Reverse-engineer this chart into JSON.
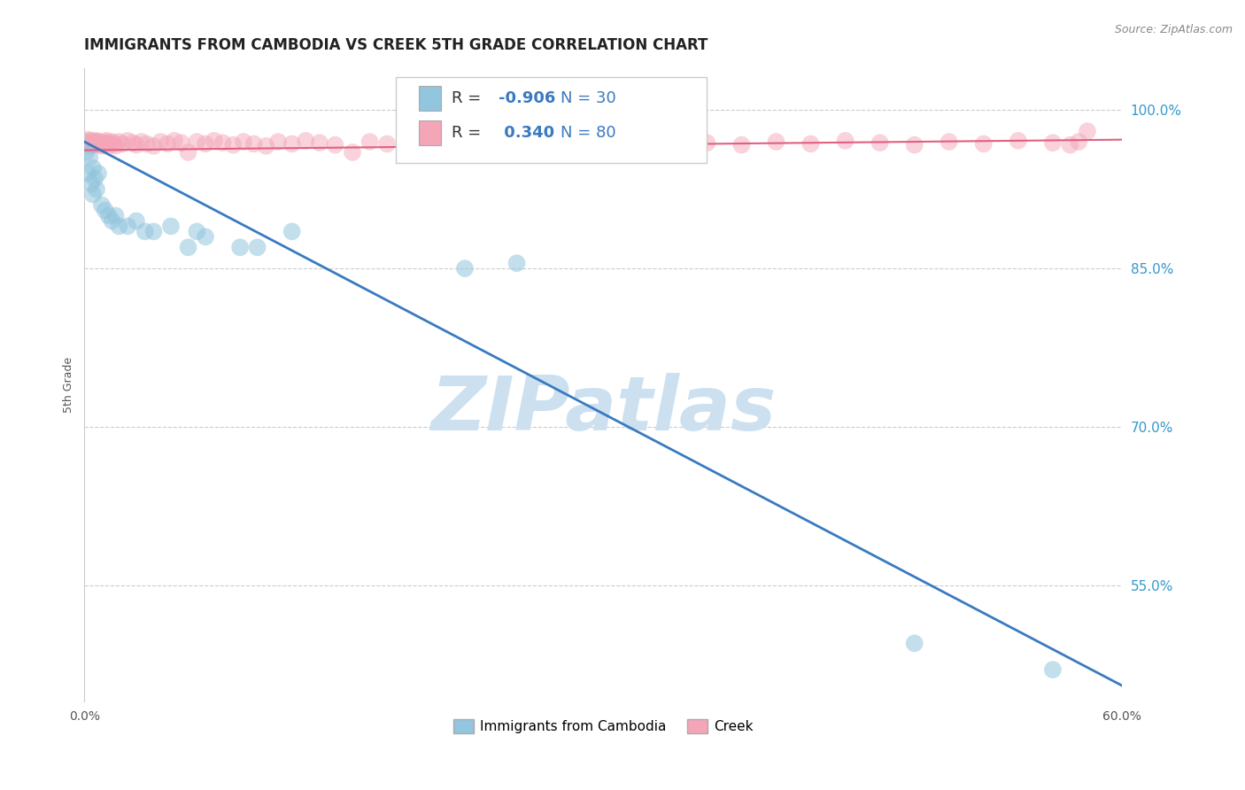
{
  "title": "IMMIGRANTS FROM CAMBODIA VS CREEK 5TH GRADE CORRELATION CHART",
  "source_text": "Source: ZipAtlas.com",
  "ylabel": "5th Grade",
  "xlabel": "",
  "xlim": [
    0.0,
    0.6
  ],
  "ylim": [
    0.44,
    1.04
  ],
  "xticks": [
    0.0,
    0.1,
    0.2,
    0.3,
    0.4,
    0.5,
    0.6
  ],
  "xticklabels": [
    "0.0%",
    "",
    "",
    "",
    "",
    "",
    "60.0%"
  ],
  "yticks": [
    0.55,
    0.7,
    0.85,
    1.0
  ],
  "yticklabels": [
    "55.0%",
    "70.0%",
    "85.0%",
    "100.0%"
  ],
  "blue_color": "#92c5de",
  "pink_color": "#f4a6b8",
  "blue_line_color": "#3a7abf",
  "pink_line_color": "#e06080",
  "watermark_color": "#cce0f0",
  "background_color": "#ffffff",
  "R_blue": -0.906,
  "N_blue": 30,
  "R_pink": 0.34,
  "N_pink": 80,
  "blue_scatter_x": [
    0.001,
    0.002,
    0.003,
    0.004,
    0.005,
    0.005,
    0.006,
    0.007,
    0.008,
    0.01,
    0.012,
    0.014,
    0.016,
    0.018,
    0.02,
    0.025,
    0.03,
    0.035,
    0.04,
    0.05,
    0.06,
    0.065,
    0.07,
    0.09,
    0.1,
    0.12,
    0.22,
    0.25,
    0.48,
    0.56
  ],
  "blue_scatter_y": [
    0.96,
    0.94,
    0.955,
    0.93,
    0.945,
    0.92,
    0.935,
    0.925,
    0.94,
    0.91,
    0.905,
    0.9,
    0.895,
    0.9,
    0.89,
    0.89,
    0.895,
    0.885,
    0.885,
    0.89,
    0.87,
    0.885,
    0.88,
    0.87,
    0.87,
    0.885,
    0.85,
    0.855,
    0.495,
    0.47
  ],
  "blue_line_x": [
    0.0,
    0.6
  ],
  "blue_line_y": [
    0.97,
    0.455
  ],
  "pink_scatter_x": [
    0.001,
    0.002,
    0.002,
    0.003,
    0.003,
    0.004,
    0.004,
    0.005,
    0.005,
    0.006,
    0.006,
    0.007,
    0.007,
    0.008,
    0.008,
    0.009,
    0.01,
    0.011,
    0.012,
    0.013,
    0.014,
    0.015,
    0.016,
    0.017,
    0.018,
    0.02,
    0.022,
    0.025,
    0.028,
    0.03,
    0.033,
    0.036,
    0.04,
    0.044,
    0.048,
    0.052,
    0.056,
    0.06,
    0.065,
    0.07,
    0.075,
    0.08,
    0.086,
    0.092,
    0.098,
    0.105,
    0.112,
    0.12,
    0.128,
    0.136,
    0.145,
    0.155,
    0.165,
    0.175,
    0.185,
    0.195,
    0.205,
    0.215,
    0.225,
    0.235,
    0.25,
    0.265,
    0.28,
    0.3,
    0.32,
    0.34,
    0.36,
    0.38,
    0.4,
    0.42,
    0.44,
    0.46,
    0.48,
    0.5,
    0.52,
    0.54,
    0.56,
    0.57,
    0.575,
    0.58
  ],
  "pink_scatter_y": [
    0.97,
    0.968,
    0.972,
    0.966,
    0.97,
    0.968,
    0.971,
    0.969,
    0.967,
    0.97,
    0.968,
    0.971,
    0.969,
    0.967,
    0.97,
    0.968,
    0.966,
    0.97,
    0.968,
    0.971,
    0.969,
    0.967,
    0.97,
    0.968,
    0.966,
    0.97,
    0.968,
    0.971,
    0.969,
    0.967,
    0.97,
    0.968,
    0.966,
    0.97,
    0.968,
    0.971,
    0.969,
    0.96,
    0.97,
    0.968,
    0.971,
    0.969,
    0.967,
    0.97,
    0.968,
    0.966,
    0.97,
    0.968,
    0.971,
    0.969,
    0.967,
    0.96,
    0.97,
    0.968,
    0.966,
    0.971,
    0.969,
    0.967,
    0.97,
    0.968,
    0.971,
    0.969,
    0.967,
    0.97,
    0.968,
    0.971,
    0.969,
    0.967,
    0.97,
    0.968,
    0.971,
    0.969,
    0.967,
    0.97,
    0.968,
    0.971,
    0.969,
    0.967,
    0.97,
    0.98
  ],
  "pink_line_x": [
    0.0,
    0.6
  ],
  "pink_line_y": [
    0.962,
    0.972
  ],
  "title_fontsize": 12,
  "axis_label_fontsize": 9,
  "tick_fontsize": 10,
  "legend_fontsize": 13
}
